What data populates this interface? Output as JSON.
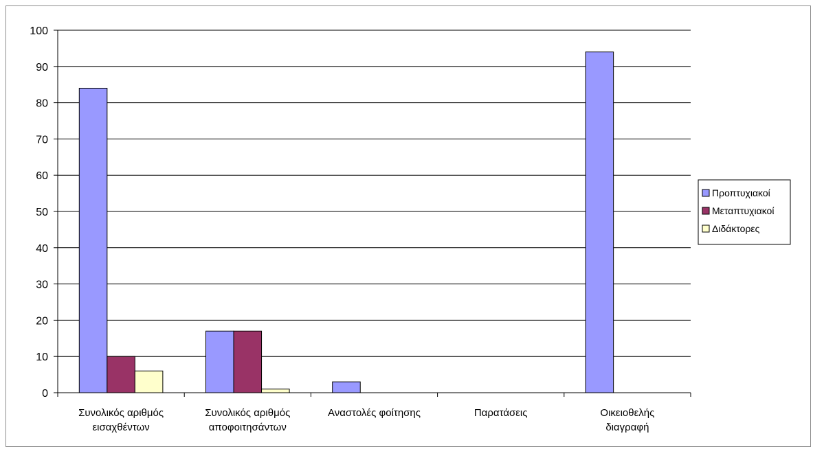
{
  "chart_data": {
    "type": "bar",
    "title": "",
    "xlabel": "",
    "ylabel": "",
    "ylim": [
      0,
      100
    ],
    "yticks": [
      0,
      10,
      20,
      30,
      40,
      50,
      60,
      70,
      80,
      90,
      100
    ],
    "grid": true,
    "legend_position": "right",
    "categories": [
      [
        "Συνολικός αριθμός",
        "εισαχθέντων"
      ],
      [
        "Συνολικός αριθμός",
        "αποφοιτησάντων"
      ],
      [
        "Αναστολές φοίτησης"
      ],
      [
        "Παρατάσεις"
      ],
      [
        "Οικειοθελής",
        "διαγραφή"
      ]
    ],
    "series": [
      {
        "name": "Προπτυχιακοί",
        "color": "#9999ff",
        "values": [
          84,
          17,
          3,
          0,
          94
        ]
      },
      {
        "name": "Μεταπτυχιακοί",
        "color": "#993366",
        "values": [
          10,
          17,
          0,
          0,
          0
        ]
      },
      {
        "name": "Διδάκτορες",
        "color": "#ffffcc",
        "values": [
          6,
          1,
          0,
          0,
          0
        ]
      }
    ]
  }
}
